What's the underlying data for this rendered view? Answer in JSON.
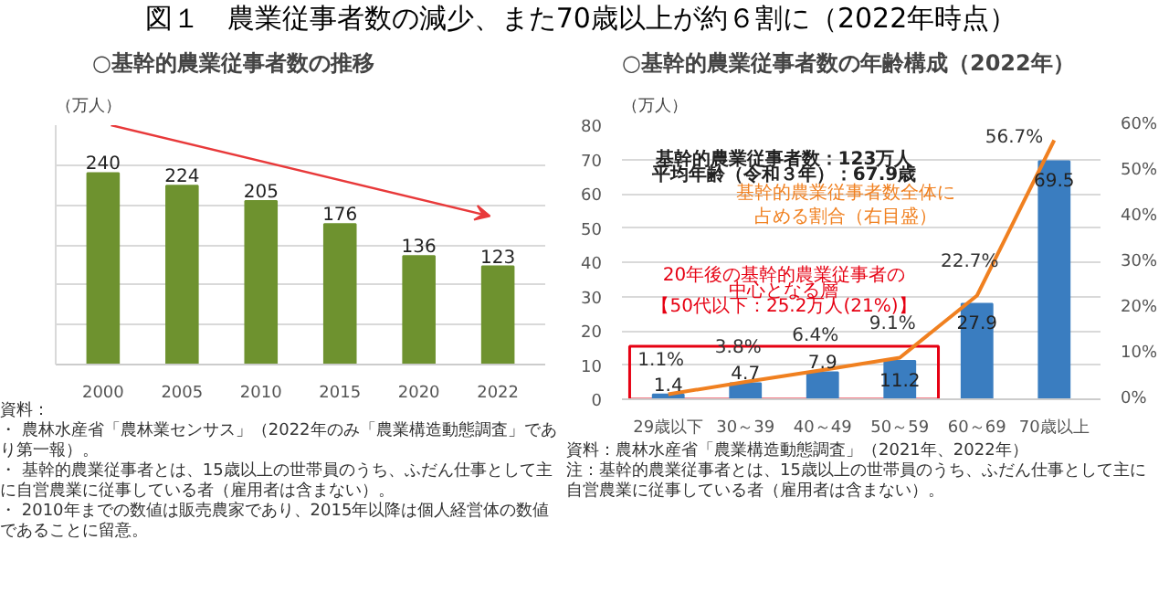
{
  "chart_data": [
    {
      "type": "bar",
      "title": "図１　農業従事者数の減少、また70歳以上が約６割に（2022年時点）",
      "subtitle": "○基幹的農業従事者数の推移",
      "ylabel": "（万人）",
      "categories": [
        "2000",
        "2005",
        "2010",
        "2015",
        "2020",
        "2022"
      ],
      "values": [
        240,
        224,
        205,
        176,
        136,
        123
      ],
      "color": "#6e922f",
      "data_labels": true,
      "ylim": [
        0,
        300
      ],
      "tick_labels": "x",
      "grid": "y",
      "annotations": [
        "資料：",
        "・ 農林水産省「農林業センサス」（2022年のみ「農業構造動態調査」であり第一報）。",
        "・ 基幹的農業従事者とは、15歳以上の世帯員のうち、ふだん仕事として主に自営農業に従事している者（雇用者は含まない）。",
        "・ 2010年までの数値は販売農家であり、2015年以降は個人経営体の数値であることに留意。"
      ]
    },
    {
      "type": "bar",
      "title": "○基幹的農業従事者数の年齢構成（2022年）",
      "ylabel": "（万人）",
      "categories": [
        "29歳以下",
        "30～39",
        "40～49",
        "50～59",
        "60～69",
        "70歳以上"
      ],
      "series": [
        {
          "type": "bar",
          "color": "#3a7dc0",
          "values": [
            1.4,
            4.7,
            7.9,
            11.2,
            27.9,
            69.5
          ]
        },
        {
          "type": "line",
          "name": "基幹的農業従事者数全体に占める割合（右目盛）",
          "color": "#f08020",
          "axis": "y2",
          "values": [
            1.1,
            3.8,
            6.4,
            9.1,
            22.7,
            56.7
          ],
          "value_labels": [
            "1.1%",
            "3.8%",
            "6.4%",
            "9.1%",
            "22.7%",
            "56.7%"
          ]
        }
      ],
      "data_labels": true,
      "ylim": [
        0,
        80
      ],
      "yticks": [
        0,
        10,
        20,
        30,
        40,
        50,
        60,
        70,
        80
      ],
      "y2lim": [
        0,
        60
      ],
      "y2ticks": [
        {
          "value": 0,
          "label": "0%"
        },
        {
          "value": 10,
          "label": "10%"
        },
        {
          "value": 20,
          "label": "20%"
        },
        {
          "value": 30,
          "label": "30%"
        },
        {
          "value": 40,
          "label": "40%"
        },
        {
          "value": 50,
          "label": "50%"
        },
        {
          "value": 60,
          "label": "60%"
        }
      ],
      "grid": "y",
      "marker": "none",
      "line_style": "solid",
      "annotations": [
        "基幹的農業従事者数：123万人",
        "平均年齢（令和３年）：67.9歳",
        "20年後の基幹的農業従事者の",
        "中心となる層",
        "【50代以下：25.2万人(21%)】",
        "資料：農林水産省「農業構造動態調査」（2021年、2022年）",
        "注：基幹的農業従事者とは、15歳以上の世帯員のうち、ふだん仕事として主に自営農業に従事している者（雇用者は含まない）。"
      ]
    }
  ]
}
